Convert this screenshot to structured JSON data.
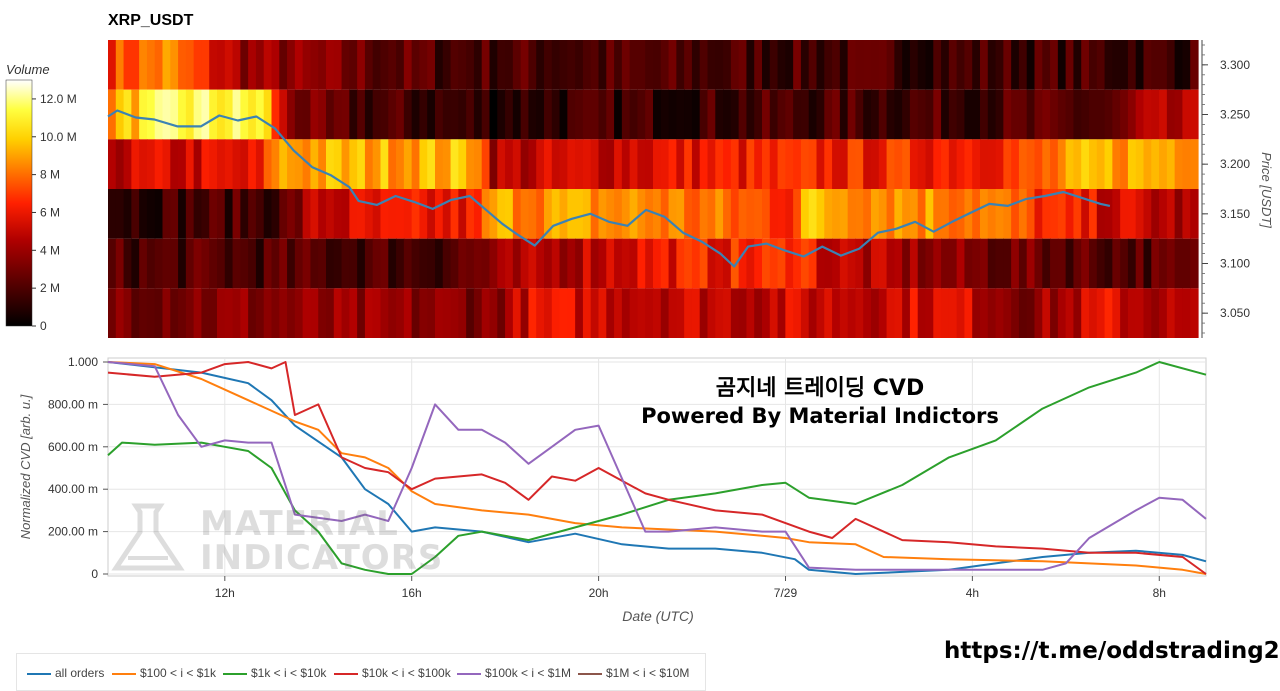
{
  "title": "XRP_USDT",
  "heatmap": {
    "colorbar_title": "Volume",
    "colorbar_ticks": [
      "12.0 M",
      "10.0 M",
      "8 M",
      "6 M",
      "4 M",
      "2 M",
      "0"
    ],
    "colorbar_tick_values": [
      12,
      10,
      8,
      6,
      4,
      2,
      0
    ],
    "colorbar_max": 13,
    "price_axis_label": "Price [USDT]",
    "price_ticks": [
      "3.300",
      "3.250",
      "3.200",
      "3.150",
      "3.100",
      "3.050"
    ],
    "price_tick_values": [
      3.3,
      3.25,
      3.2,
      3.15,
      3.1,
      3.05
    ],
    "price_range": [
      3.025,
      3.325
    ],
    "bands": [
      {
        "low": 3.275,
        "high": 3.325,
        "profile": [
          [
            0,
            7
          ],
          [
            0.05,
            8.5
          ],
          [
            0.12,
            4
          ],
          [
            0.3,
            2
          ],
          [
            0.6,
            1.8
          ],
          [
            1,
            1.6
          ]
        ]
      },
      {
        "low": 3.225,
        "high": 3.275,
        "profile": [
          [
            0,
            9
          ],
          [
            0.06,
            11.5
          ],
          [
            0.14,
            11
          ],
          [
            0.16,
            4
          ],
          [
            0.2,
            2
          ],
          [
            0.34,
            1.2
          ],
          [
            0.65,
            1.8
          ],
          [
            0.93,
            2
          ],
          [
            0.95,
            4
          ],
          [
            1,
            4
          ]
        ]
      },
      {
        "low": 3.175,
        "high": 3.225,
        "profile": [
          [
            0,
            5
          ],
          [
            0.14,
            5.5
          ],
          [
            0.15,
            9
          ],
          [
            0.34,
            9.5
          ],
          [
            0.35,
            4.5
          ],
          [
            0.55,
            6
          ],
          [
            0.75,
            6.5
          ],
          [
            0.85,
            7
          ],
          [
            0.9,
            9
          ],
          [
            1,
            9.5
          ]
        ]
      },
      {
        "low": 3.125,
        "high": 3.175,
        "profile": [
          [
            0,
            1.5
          ],
          [
            0.16,
            2
          ],
          [
            0.19,
            5
          ],
          [
            0.34,
            6
          ],
          [
            0.35,
            9
          ],
          [
            0.5,
            8.5
          ],
          [
            0.63,
            7
          ],
          [
            0.64,
            9.5
          ],
          [
            0.8,
            8.5
          ],
          [
            0.88,
            6
          ],
          [
            0.95,
            5
          ],
          [
            1,
            4
          ]
        ]
      },
      {
        "low": 3.075,
        "high": 3.125,
        "profile": [
          [
            0,
            2
          ],
          [
            0.3,
            2
          ],
          [
            0.38,
            4
          ],
          [
            0.5,
            6
          ],
          [
            0.62,
            6.5
          ],
          [
            0.63,
            8
          ],
          [
            0.66,
            5
          ],
          [
            0.8,
            3
          ],
          [
            1,
            2
          ]
        ]
      },
      {
        "low": 3.025,
        "high": 3.075,
        "profile": [
          [
            0,
            3.5
          ],
          [
            0.35,
            3.5
          ],
          [
            0.39,
            5.5
          ],
          [
            0.6,
            5
          ],
          [
            0.78,
            5.5
          ],
          [
            0.85,
            3.5
          ],
          [
            0.92,
            5.5
          ],
          [
            1,
            4
          ]
        ]
      }
    ],
    "price_series": [
      [
        0,
        3.248
      ],
      [
        0.2,
        3.254
      ],
      [
        0.6,
        3.247
      ],
      [
        1.0,
        3.245
      ],
      [
        1.5,
        3.238
      ],
      [
        2.0,
        3.238
      ],
      [
        2.4,
        3.249
      ],
      [
        2.8,
        3.244
      ],
      [
        3.2,
        3.248
      ],
      [
        3.6,
        3.236
      ],
      [
        4.0,
        3.214
      ],
      [
        4.4,
        3.197
      ],
      [
        4.8,
        3.189
      ],
      [
        5.2,
        3.177
      ],
      [
        5.4,
        3.163
      ],
      [
        5.8,
        3.159
      ],
      [
        6.2,
        3.168
      ],
      [
        6.6,
        3.162
      ],
      [
        7.0,
        3.155
      ],
      [
        7.4,
        3.164
      ],
      [
        7.8,
        3.168
      ],
      [
        8.2,
        3.152
      ],
      [
        8.5,
        3.14
      ],
      [
        8.8,
        3.13
      ],
      [
        9.2,
        3.118
      ],
      [
        9.6,
        3.138
      ],
      [
        10.0,
        3.145
      ],
      [
        10.4,
        3.15
      ],
      [
        10.8,
        3.142
      ],
      [
        11.2,
        3.138
      ],
      [
        11.6,
        3.154
      ],
      [
        12.0,
        3.147
      ],
      [
        12.4,
        3.131
      ],
      [
        12.8,
        3.122
      ],
      [
        13.2,
        3.11
      ],
      [
        13.5,
        3.097
      ],
      [
        13.8,
        3.117
      ],
      [
        14.2,
        3.12
      ],
      [
        14.6,
        3.113
      ],
      [
        15.0,
        3.107
      ],
      [
        15.4,
        3.117
      ],
      [
        15.8,
        3.108
      ],
      [
        16.2,
        3.115
      ],
      [
        16.6,
        3.131
      ],
      [
        17.0,
        3.135
      ],
      [
        17.4,
        3.142
      ],
      [
        17.8,
        3.132
      ],
      [
        18.2,
        3.142
      ],
      [
        18.6,
        3.151
      ],
      [
        19.0,
        3.16
      ],
      [
        19.4,
        3.158
      ],
      [
        19.8,
        3.165
      ],
      [
        20.2,
        3.168
      ],
      [
        20.6,
        3.172
      ],
      [
        21.0,
        3.166
      ],
      [
        21.4,
        3.16
      ],
      [
        21.6,
        3.158
      ]
    ]
  },
  "cvd": {
    "ylabel": "Normalized CVD [arb. u.]",
    "xlabel": "Date (UTC)",
    "yticks": [
      "1.000",
      "800.00 m",
      "600.00 m",
      "400.00 m",
      "200.00 m",
      "0"
    ],
    "ytick_values": [
      1.0,
      0.8,
      0.6,
      0.4,
      0.2,
      0
    ],
    "xticks": [
      "12h",
      "16h",
      "20h",
      "7/29",
      "4h",
      "8h"
    ],
    "xtick_values": [
      2.5,
      6.5,
      10.5,
      14.5,
      18.5,
      22.5
    ],
    "x_range": [
      0,
      23.5
    ],
    "overlay_title": "곰지네 트레이딩 CVD",
    "overlay_subtitle": "Powered By Material Indictors"
  },
  "chart_data": {
    "type": "line",
    "title": "XRP_USDT",
    "xlabel": "Date (UTC)",
    "ylabel": "Normalized CVD [arb. u.]",
    "ylim": [
      0,
      1
    ],
    "series": [
      {
        "name": "all orders",
        "color": "#1f77b4",
        "points": [
          [
            0,
            1.0
          ],
          [
            2,
            0.95
          ],
          [
            3,
            0.9
          ],
          [
            3.5,
            0.82
          ],
          [
            4,
            0.7
          ],
          [
            5,
            0.55
          ],
          [
            5.5,
            0.4
          ],
          [
            6,
            0.33
          ],
          [
            6.5,
            0.2
          ],
          [
            7,
            0.22
          ],
          [
            8,
            0.2
          ],
          [
            9,
            0.15
          ],
          [
            10,
            0.19
          ],
          [
            11,
            0.14
          ],
          [
            12,
            0.12
          ],
          [
            13,
            0.12
          ],
          [
            14,
            0.1
          ],
          [
            14.7,
            0.07
          ],
          [
            15,
            0.02
          ],
          [
            16,
            0.0
          ],
          [
            17,
            0.01
          ],
          [
            18,
            0.02
          ],
          [
            19,
            0.05
          ],
          [
            20,
            0.08
          ],
          [
            21,
            0.1
          ],
          [
            22,
            0.11
          ],
          [
            23,
            0.09
          ],
          [
            23.5,
            0.06
          ]
        ]
      },
      {
        "name": "$100 < i < $1k",
        "color": "#ff7f0e",
        "points": [
          [
            0,
            1.0
          ],
          [
            1,
            0.99
          ],
          [
            2,
            0.92
          ],
          [
            3,
            0.82
          ],
          [
            4,
            0.72
          ],
          [
            4.5,
            0.68
          ],
          [
            5,
            0.57
          ],
          [
            5.5,
            0.55
          ],
          [
            6,
            0.5
          ],
          [
            6.5,
            0.39
          ],
          [
            7,
            0.33
          ],
          [
            8,
            0.3
          ],
          [
            9,
            0.28
          ],
          [
            10,
            0.24
          ],
          [
            11,
            0.22
          ],
          [
            12,
            0.21
          ],
          [
            13,
            0.2
          ],
          [
            14,
            0.18
          ],
          [
            14.5,
            0.17
          ],
          [
            15,
            0.15
          ],
          [
            16,
            0.14
          ],
          [
            16.6,
            0.08
          ],
          [
            18,
            0.07
          ],
          [
            20,
            0.06
          ],
          [
            22,
            0.04
          ],
          [
            23,
            0.02
          ],
          [
            23.5,
            0.0
          ]
        ]
      },
      {
        "name": "$1k < i < $10k",
        "color": "#2ca02c",
        "points": [
          [
            0,
            0.56
          ],
          [
            0.3,
            0.62
          ],
          [
            1,
            0.61
          ],
          [
            2,
            0.62
          ],
          [
            2.5,
            0.6
          ],
          [
            3,
            0.58
          ],
          [
            3.5,
            0.5
          ],
          [
            4,
            0.3
          ],
          [
            4.5,
            0.2
          ],
          [
            5,
            0.05
          ],
          [
            5.5,
            0.02
          ],
          [
            6,
            0.0
          ],
          [
            6.5,
            0.0
          ],
          [
            7,
            0.08
          ],
          [
            7.5,
            0.18
          ],
          [
            8,
            0.2
          ],
          [
            9,
            0.16
          ],
          [
            10,
            0.22
          ],
          [
            11,
            0.28
          ],
          [
            12,
            0.35
          ],
          [
            13,
            0.38
          ],
          [
            14,
            0.42
          ],
          [
            14.5,
            0.43
          ],
          [
            15,
            0.36
          ],
          [
            16,
            0.33
          ],
          [
            17,
            0.42
          ],
          [
            18,
            0.55
          ],
          [
            19,
            0.63
          ],
          [
            20,
            0.78
          ],
          [
            21,
            0.88
          ],
          [
            22,
            0.95
          ],
          [
            22.5,
            1.0
          ],
          [
            23.5,
            0.94
          ]
        ]
      },
      {
        "name": "$10k < i < $100k",
        "color": "#d62728",
        "points": [
          [
            0,
            0.95
          ],
          [
            1,
            0.93
          ],
          [
            2,
            0.95
          ],
          [
            2.5,
            0.99
          ],
          [
            3,
            1.0
          ],
          [
            3.5,
            0.97
          ],
          [
            3.8,
            1.0
          ],
          [
            4,
            0.75
          ],
          [
            4.5,
            0.8
          ],
          [
            5,
            0.55
          ],
          [
            5.5,
            0.5
          ],
          [
            6,
            0.48
          ],
          [
            6.5,
            0.4
          ],
          [
            7,
            0.45
          ],
          [
            8,
            0.47
          ],
          [
            8.5,
            0.43
          ],
          [
            9,
            0.35
          ],
          [
            9.5,
            0.46
          ],
          [
            10,
            0.44
          ],
          [
            10.5,
            0.5
          ],
          [
            11,
            0.44
          ],
          [
            11.5,
            0.38
          ],
          [
            12,
            0.35
          ],
          [
            13,
            0.3
          ],
          [
            14,
            0.28
          ],
          [
            15,
            0.2
          ],
          [
            15.5,
            0.17
          ],
          [
            16,
            0.26
          ],
          [
            17,
            0.16
          ],
          [
            18,
            0.15
          ],
          [
            19,
            0.13
          ],
          [
            20,
            0.12
          ],
          [
            21,
            0.1
          ],
          [
            22,
            0.1
          ],
          [
            23,
            0.08
          ],
          [
            23.5,
            0.0
          ]
        ]
      },
      {
        "name": "$100k < i < $1M",
        "color": "#9467bd",
        "points": [
          [
            0,
            1.0
          ],
          [
            1,
            0.98
          ],
          [
            1.5,
            0.75
          ],
          [
            2,
            0.6
          ],
          [
            2.5,
            0.63
          ],
          [
            3,
            0.62
          ],
          [
            3.5,
            0.62
          ],
          [
            4,
            0.28
          ],
          [
            5,
            0.25
          ],
          [
            5.5,
            0.28
          ],
          [
            6,
            0.25
          ],
          [
            6.5,
            0.5
          ],
          [
            7,
            0.8
          ],
          [
            7.5,
            0.68
          ],
          [
            8,
            0.68
          ],
          [
            8.5,
            0.62
          ],
          [
            9,
            0.52
          ],
          [
            9.5,
            0.6
          ],
          [
            10,
            0.68
          ],
          [
            10.5,
            0.7
          ],
          [
            11,
            0.45
          ],
          [
            11.5,
            0.2
          ],
          [
            12,
            0.2
          ],
          [
            13,
            0.22
          ],
          [
            14,
            0.2
          ],
          [
            14.5,
            0.2
          ],
          [
            15,
            0.03
          ],
          [
            16,
            0.02
          ],
          [
            17,
            0.02
          ],
          [
            18,
            0.02
          ],
          [
            19,
            0.02
          ],
          [
            20,
            0.02
          ],
          [
            20.5,
            0.05
          ],
          [
            21,
            0.17
          ],
          [
            22,
            0.3
          ],
          [
            22.5,
            0.36
          ],
          [
            23,
            0.35
          ],
          [
            23.5,
            0.26
          ]
        ]
      },
      {
        "name": "$1M < i < $10M",
        "color": "#8c564b",
        "points": []
      }
    ]
  },
  "legend": [
    {
      "label": "all orders",
      "color": "#1f77b4"
    },
    {
      "label": "$100 < i < $1k",
      "color": "#ff7f0e"
    },
    {
      "label": "$1k < i < $10k",
      "color": "#2ca02c"
    },
    {
      "label": "$10k < i < $100k",
      "color": "#d62728"
    },
    {
      "label": "$100k < i < $1M",
      "color": "#9467bd"
    },
    {
      "label": "$1M < i < $10M",
      "color": "#8c564b"
    }
  ],
  "watermark": {
    "line1": "MATERIAL",
    "line2": "INDICATORS"
  },
  "footer_link": "https://t.me/oddstrading2"
}
